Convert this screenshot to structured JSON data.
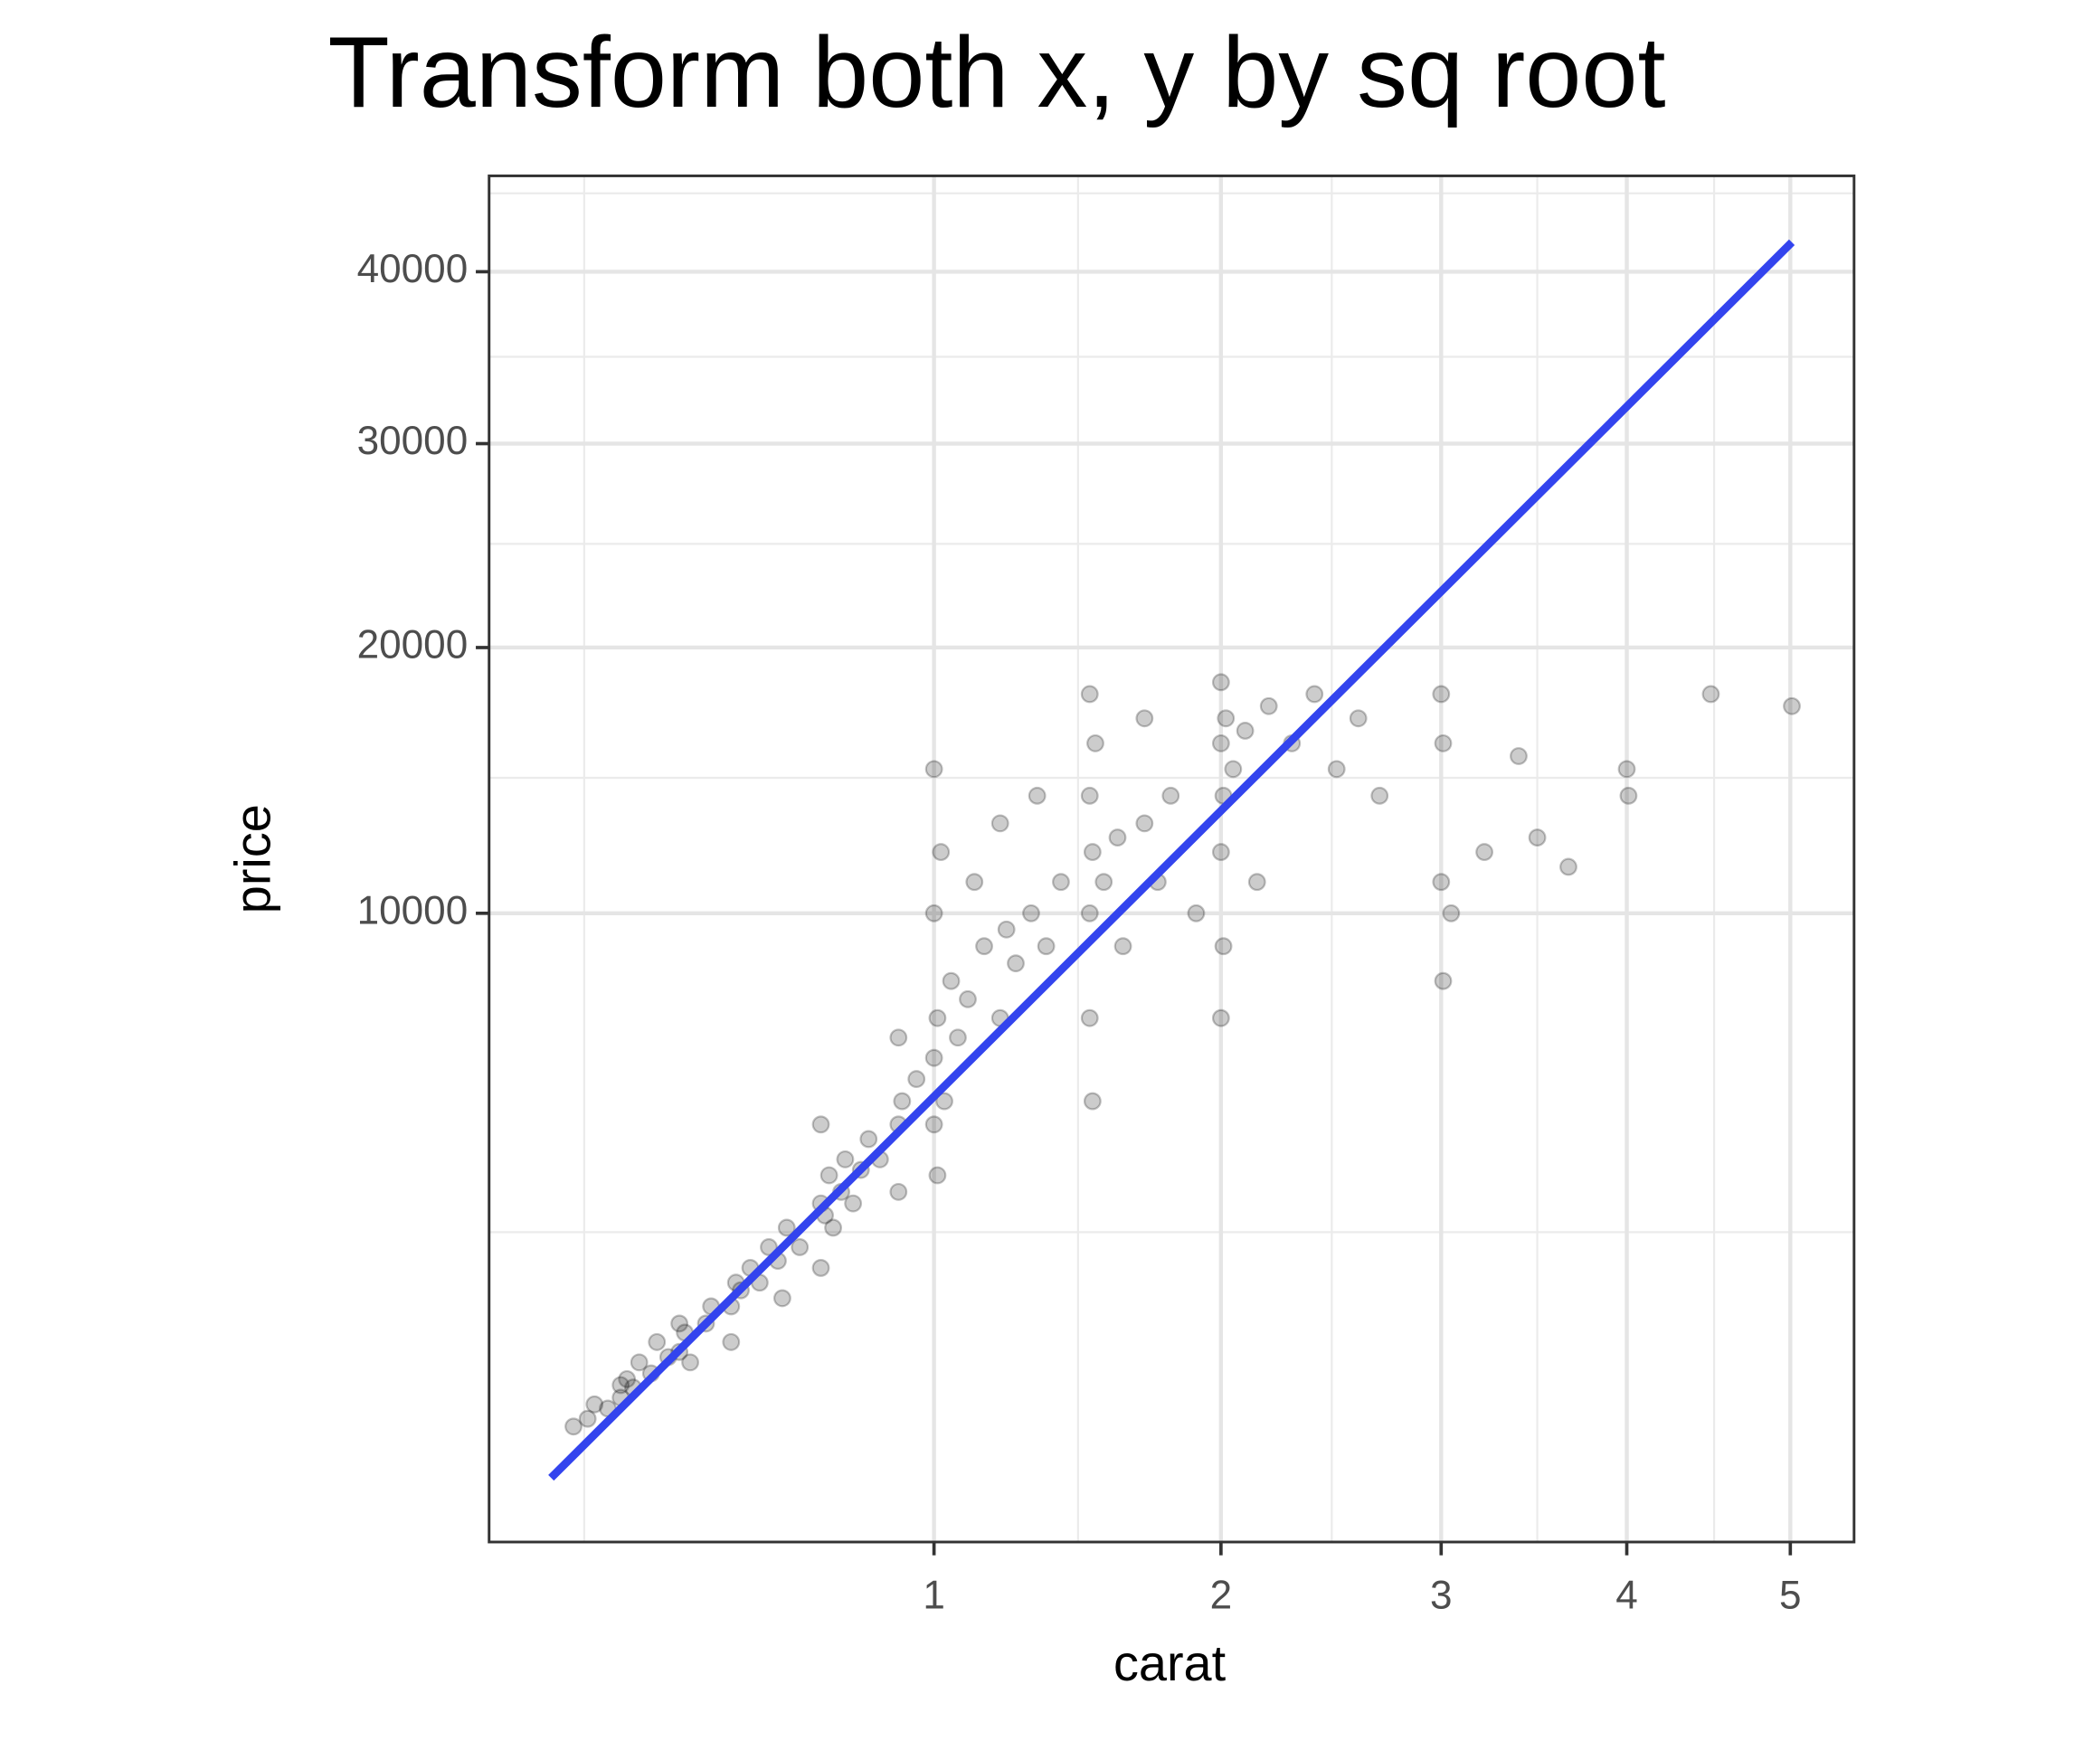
{
  "chart_data": {
    "type": "scatter",
    "title": "Transform both x, y by sq root",
    "xlabel": "carat",
    "ylabel": "price",
    "xscale": "sqrt",
    "yscale": "sqrt",
    "xlim": [
      0.128,
      5.42
    ],
    "ylim": [
      4,
      46200
    ],
    "xticks": [
      1,
      2,
      3,
      4,
      5
    ],
    "yticks": [
      10000,
      20000,
      30000,
      40000
    ],
    "xminor": [
      0.245,
      1.459,
      2.478,
      3.5,
      4.52
    ],
    "yminor": [
      2530,
      14670,
      24830,
      34870,
      45040
    ],
    "grid": true,
    "series": [
      {
        "type": "scatter",
        "color": "#000000",
        "opacity": 0.2,
        "x": [
          0.23,
          0.25,
          0.26,
          0.28,
          0.3,
          0.3,
          0.31,
          0.32,
          0.33,
          0.35,
          0.36,
          0.38,
          0.4,
          0.4,
          0.41,
          0.42,
          0.45,
          0.46,
          0.5,
          0.5,
          0.51,
          0.52,
          0.54,
          0.56,
          0.58,
          0.6,
          0.61,
          0.62,
          0.65,
          0.7,
          0.7,
          0.7,
          0.71,
          0.72,
          0.73,
          0.75,
          0.76,
          0.78,
          0.8,
          0.82,
          0.85,
          0.9,
          0.9,
          0.9,
          0.91,
          0.95,
          1.0,
          1.0,
          1.0,
          1.0,
          1.01,
          1.01,
          1.02,
          1.03,
          1.05,
          1.07,
          1.1,
          1.12,
          1.15,
          1.2,
          1.2,
          1.22,
          1.25,
          1.3,
          1.32,
          1.35,
          1.4,
          1.5,
          1.5,
          1.5,
          1.5,
          1.51,
          1.51,
          1.52,
          1.55,
          1.6,
          1.62,
          1.7,
          1.7,
          1.75,
          1.8,
          1.9,
          2.0,
          2.0,
          2.0,
          2.0,
          2.01,
          2.01,
          2.02,
          2.05,
          2.1,
          2.15,
          2.2,
          2.3,
          2.4,
          2.5,
          2.6,
          2.7,
          3.0,
          3.0,
          3.01,
          3.01,
          3.05,
          3.22,
          3.4,
          3.5,
          3.67,
          4.0,
          4.01,
          4.5,
          5.01
        ],
        "values": [
          400,
          450,
          550,
          520,
          700,
          600,
          750,
          680,
          900,
          800,
          1100,
          950,
          1000,
          1300,
          1200,
          900,
          1300,
          1500,
          1500,
          1100,
          1800,
          1700,
          2000,
          1800,
          2300,
          2100,
          1600,
          2600,
          2300,
          2000,
          3000,
          4500,
          2800,
          3500,
          2600,
          3200,
          3800,
          3000,
          3600,
          4200,
          3800,
          4500,
          3200,
          6500,
          5000,
          5500,
          4500,
          6000,
          10000,
          15000,
          7000,
          3500,
          12000,
          5000,
          8000,
          6500,
          7500,
          11000,
          9000,
          7000,
          13000,
          9500,
          8500,
          10000,
          14000,
          9000,
          11000,
          7000,
          10000,
          14000,
          18000,
          5000,
          12000,
          16000,
          11000,
          12500,
          9000,
          13000,
          17000,
          11000,
          14000,
          10000,
          7000,
          12000,
          16000,
          18500,
          9000,
          14000,
          17000,
          15000,
          16500,
          11000,
          17500,
          16000,
          18000,
          15000,
          17000,
          14000,
          18000,
          11000,
          16000,
          8000,
          10000,
          12000,
          15500,
          12500,
          11500,
          15000,
          14000,
          18000,
          17500
        ]
      },
      {
        "type": "line",
        "color": "#3344ee",
        "x": [
          0.2,
          5.01
        ],
        "values": [
          144,
          41860
        ]
      }
    ]
  }
}
